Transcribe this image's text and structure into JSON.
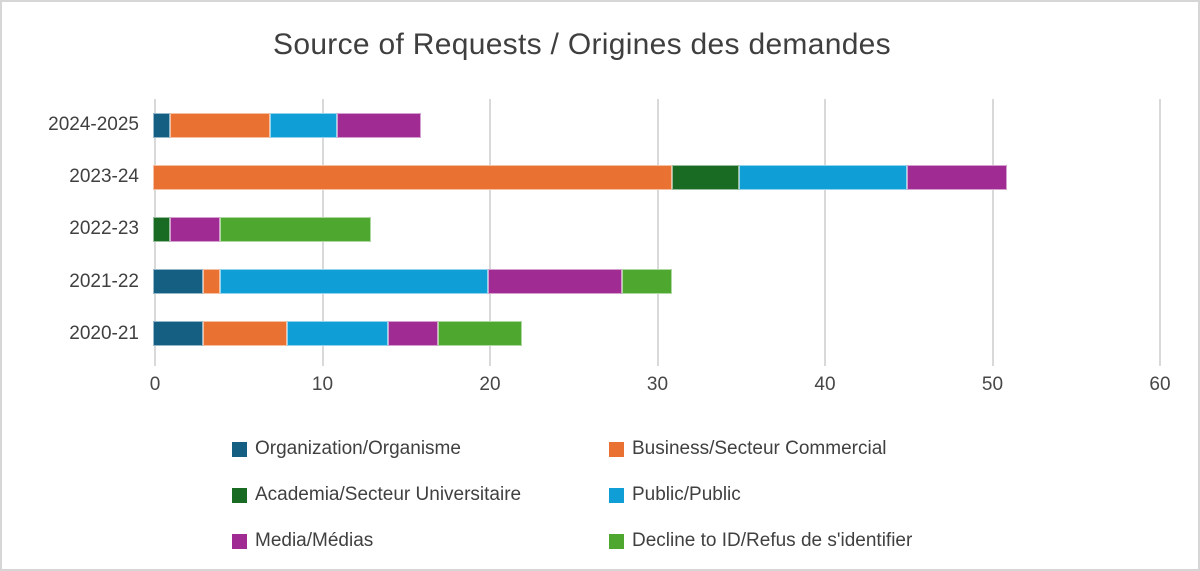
{
  "chart_data": {
    "type": "bar",
    "orientation": "horizontal",
    "stacked": true,
    "title": "Source of Requests / Origines des demandes",
    "categories": [
      "2024-2025",
      "2023-24",
      "2022-23",
      "2021-22",
      "2020-21"
    ],
    "series": [
      {
        "name": "Organization/Organisme",
        "color": "#156082",
        "values": [
          1,
          0,
          0,
          3,
          3
        ]
      },
      {
        "name": "Business/Secteur Commercial",
        "color": "#E97132",
        "values": [
          6,
          31,
          0,
          1,
          5
        ]
      },
      {
        "name": "Academia/Secteur Universitaire",
        "color": "#196B24",
        "values": [
          0,
          4,
          1,
          0,
          0
        ]
      },
      {
        "name": "Public/Public",
        "color": "#0F9ED5",
        "values": [
          4,
          10,
          0,
          16,
          6
        ]
      },
      {
        "name": "Media/Médias",
        "color": "#A02B93",
        "values": [
          5,
          6,
          3,
          8,
          3
        ]
      },
      {
        "name": "Decline to ID/Refus de s'identifier",
        "color": "#4EA72E",
        "values": [
          0,
          0,
          9,
          3,
          5
        ]
      }
    ],
    "category_totals": [
      16,
      51,
      13,
      31,
      22
    ],
    "x_axis": {
      "min": 0,
      "max": 60,
      "tick_interval": 10,
      "ticks": [
        0,
        10,
        20,
        30,
        40,
        50,
        60
      ]
    },
    "grid": true,
    "gridline_color": "#d9d9d9",
    "legend_position": "bottom",
    "text_color": "#404040"
  }
}
